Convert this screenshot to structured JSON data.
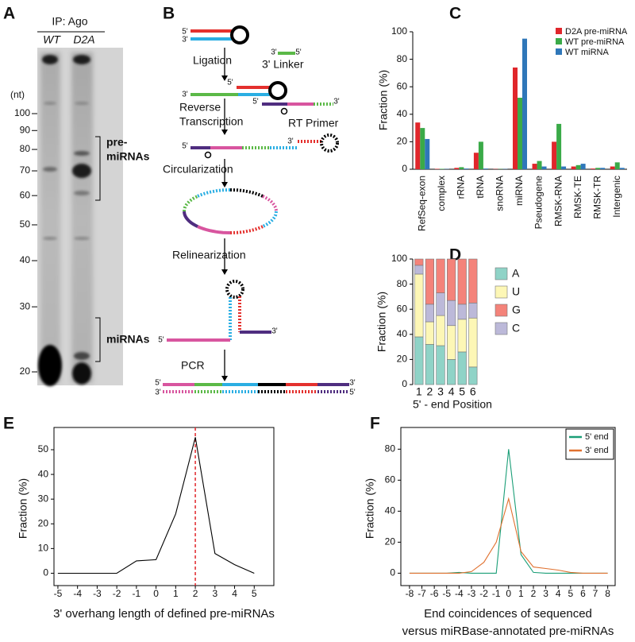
{
  "panel_labels": [
    "A",
    "B",
    "C",
    "D",
    "E",
    "F"
  ],
  "gel": {
    "title": "IP: Ago",
    "lanes": [
      "WT",
      "D2A"
    ],
    "unit_label": "(nt)",
    "size_markers": [
      100,
      90,
      80,
      70,
      60,
      50,
      40,
      30,
      20
    ],
    "pre_mirna_label": [
      "pre-",
      "miRNAs"
    ],
    "mirna_label": "miRNAs"
  },
  "diagram": {
    "ligation": "Ligation",
    "linker": "3' Linker",
    "reverse_transcription": [
      "Reverse",
      "Transcription"
    ],
    "primer": "RT Primer",
    "circularization": "Circularization",
    "relinearization": "Relinearization",
    "pcr": "PCR",
    "end_labels": [
      "5'",
      "3'",
      "3'",
      "5'",
      "5'",
      "3'",
      "5'",
      "3'",
      "5'",
      "3'",
      "5'",
      "3'",
      "5'",
      "3'",
      "3'",
      "5'"
    ]
  },
  "chart_data": [
    {
      "type": "bar",
      "y_label": "Fraction (%)",
      "categories": [
        "RefSeq-exon",
        "complex",
        "rRNA",
        "tRNA",
        "snoRNA",
        "miRNA",
        "Pseudogene",
        "RMSK-RNA",
        "RMSK-TE",
        "RMSK-TR",
        "Intergenic"
      ],
      "series": [
        {
          "name": "D2A pre-miRNA",
          "color": "#e0262b",
          "values": [
            34,
            0.3,
            1,
            12,
            0.2,
            74,
            4,
            20,
            2,
            0.5,
            2
          ]
        },
        {
          "name": "WT pre-miRNA",
          "color": "#3aaa48",
          "values": [
            30,
            0.3,
            1.5,
            20,
            0.2,
            52,
            6,
            33,
            3,
            1,
            5
          ]
        },
        {
          "name": "WT miRNA",
          "color": "#2f77b9",
          "values": [
            22,
            0.2,
            0.5,
            0.5,
            0.2,
            95,
            2,
            2,
            4,
            1,
            1
          ]
        }
      ],
      "ylim": [
        0,
        100
      ],
      "yticks": [
        0,
        20,
        40,
        60,
        80,
        100
      ],
      "legend": "top-right"
    },
    {
      "type": "stacked_bar",
      "y_label": "Fraction (%)",
      "x_label": "5' - end Position",
      "categories": [
        "1",
        "2",
        "3",
        "4",
        "5",
        "6"
      ],
      "series": [
        {
          "name": "A",
          "color": "#8fd3c7",
          "values": [
            38,
            32,
            31,
            20,
            26,
            14
          ]
        },
        {
          "name": "U",
          "color": "#fdf7b6",
          "values": [
            50,
            18,
            24,
            27,
            26,
            39
          ]
        },
        {
          "name": "G",
          "color": "#f4837a",
          "values": [
            5,
            36,
            27,
            33,
            36,
            35
          ]
        },
        {
          "name": "C",
          "color": "#bcb9d9",
          "values": [
            7,
            14,
            18,
            20,
            12,
            12
          ]
        }
      ],
      "ylim": [
        0,
        100
      ],
      "yticks": [
        0,
        20,
        40,
        60,
        80,
        100
      ],
      "legend": "right"
    },
    {
      "type": "line",
      "y_label": "Fraction (%)",
      "x_label": [
        "3' overhang length of defined pre-miRNAs"
      ],
      "x": [
        -5,
        -4,
        -3,
        -2,
        -1,
        0,
        1,
        2,
        3,
        4,
        5
      ],
      "series": [
        {
          "color": "#000000",
          "values": [
            0,
            0,
            0,
            0,
            5,
            5.5,
            24,
            55,
            8,
            3.5,
            0
          ]
        }
      ],
      "reference_x": 2,
      "reference_color": "#e0262b",
      "xlim": [
        -5.2,
        6
      ],
      "ylim": [
        -5,
        59
      ],
      "xticks": [
        -5,
        -4,
        -3,
        -2,
        -1,
        0,
        1,
        2,
        3,
        4,
        5
      ],
      "yticks": [
        0,
        10,
        20,
        30,
        40,
        50
      ]
    },
    {
      "type": "line",
      "y_label": "Fraction (%)",
      "x_label": [
        "End coincidences of sequenced",
        "versus miRBase-annotated pre-miRNAs"
      ],
      "x": [
        -8,
        -7,
        -6,
        -5,
        -4,
        -3,
        -2,
        -1,
        0,
        1,
        2,
        3,
        4,
        5,
        6,
        7,
        8
      ],
      "series": [
        {
          "name": "5' end",
          "color": "#1a9e77",
          "values": [
            0,
            0,
            0,
            0,
            0.5,
            0,
            0,
            0,
            80,
            12,
            0.5,
            0,
            0,
            0,
            0,
            0,
            0
          ]
        },
        {
          "name": "3' end",
          "color": "#e0712f",
          "values": [
            0,
            0,
            0,
            0,
            0,
            1,
            7,
            20,
            48,
            14,
            4,
            3,
            2,
            0.5,
            0,
            0,
            0
          ]
        }
      ],
      "xlim": [
        -8.7,
        8.6
      ],
      "ylim": [
        -8,
        94
      ],
      "xticks": [
        -8,
        -7,
        -6,
        -5,
        -4,
        -3,
        -2,
        -1,
        0,
        1,
        2,
        3,
        4,
        5,
        6,
        7,
        8
      ],
      "yticks": [
        0,
        20,
        40,
        60,
        80
      ],
      "legend": "top-right"
    }
  ]
}
